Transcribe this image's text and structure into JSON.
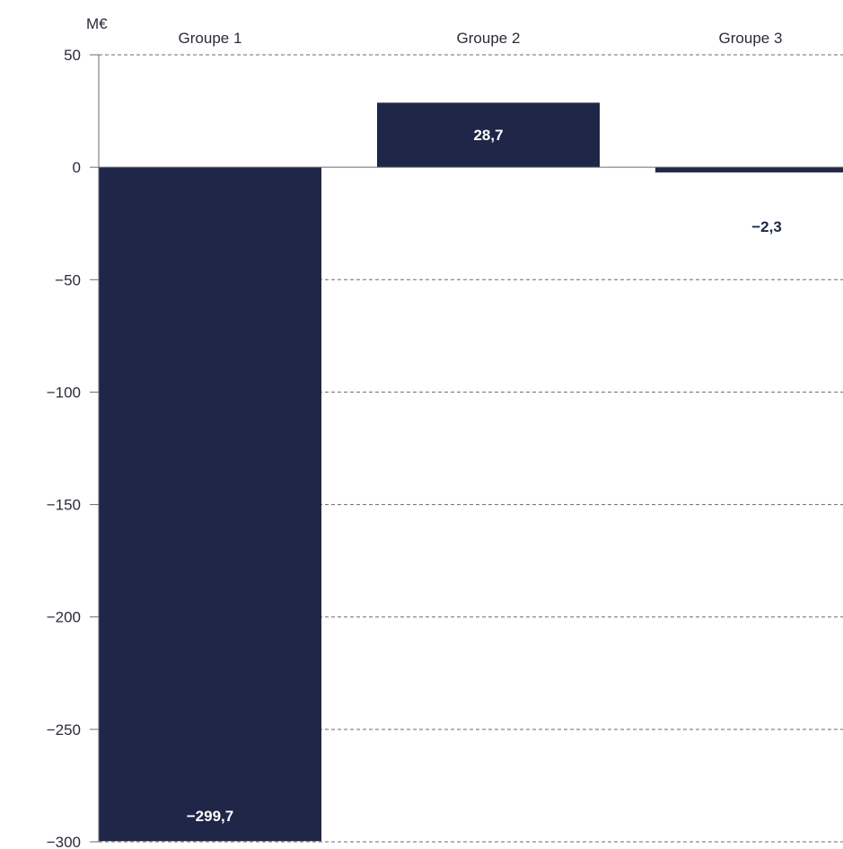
{
  "chart_data": {
    "type": "bar",
    "unit": "M€",
    "categories": [
      "Groupe 1",
      "Groupe 2",
      "Groupe 3"
    ],
    "values": [
      -299.7,
      28.7,
      -2.3
    ],
    "data_labels": [
      "−299,7",
      "28,7",
      "−2,3"
    ],
    "ylim": [
      -300,
      50
    ],
    "yticks": [
      50,
      0,
      -50,
      -100,
      -150,
      -200,
      -250,
      -300
    ],
    "ytick_labels": [
      "50",
      "0",
      "−50",
      "−100",
      "−150",
      "−200",
      "−250",
      "−300"
    ],
    "category_labels_position": "top",
    "grid": "horizontal dashed",
    "bar_color": "#1f2647",
    "label_color_inside": "#ffffff",
    "label_color_outside": "#1f2647"
  }
}
